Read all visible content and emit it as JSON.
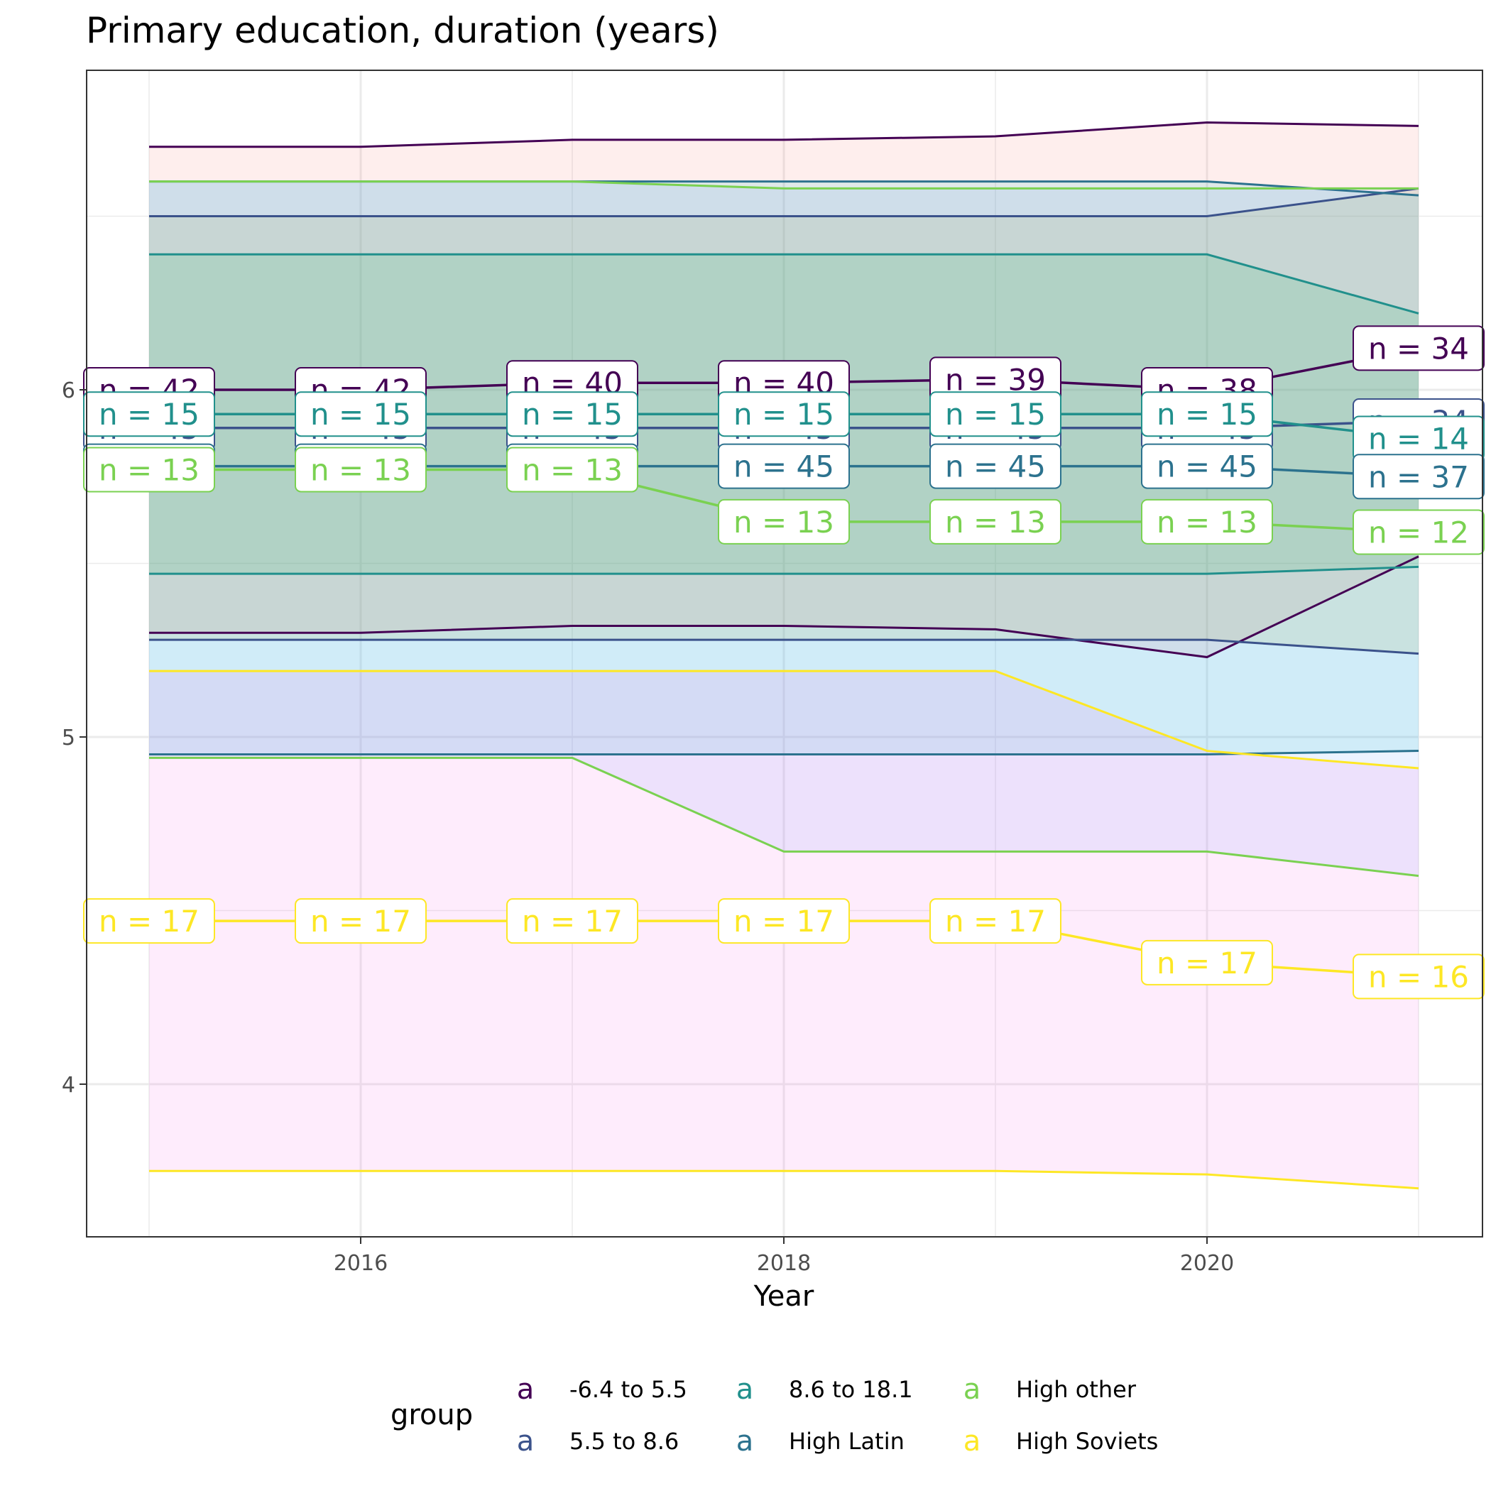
{
  "chart_data": {
    "type": "line",
    "title": "Primary education, duration (years)",
    "xlabel": "Year",
    "ylabel": "",
    "x": [
      2015,
      2016,
      2017,
      2018,
      2019,
      2020,
      2021
    ],
    "x_ticks": [
      2016,
      2018,
      2020
    ],
    "y_ticks": [
      4,
      5,
      6
    ],
    "xlim": [
      2014.7,
      2021.3
    ],
    "ylim": [
      3.58,
      6.94
    ],
    "grid": true,
    "legend": {
      "title": "group",
      "position": "bottom",
      "key_glyph": "a"
    },
    "series": [
      {
        "name": "-6.4 to 5.5",
        "color": "#440154",
        "fill": "#F8766D",
        "mean": [
          6.0,
          6.0,
          6.02,
          6.02,
          6.03,
          6.0,
          6.12
        ],
        "upper": [
          6.7,
          6.7,
          6.72,
          6.72,
          6.73,
          6.77,
          6.76
        ],
        "lower": [
          5.3,
          5.3,
          5.32,
          5.32,
          5.31,
          5.23,
          5.52
        ],
        "n": [
          "n = 42",
          "n = 42",
          "n = 40",
          "n = 40",
          "n = 39",
          "n = 38",
          "n = 34"
        ]
      },
      {
        "name": "5.5 to 8.6",
        "color": "#3B528B",
        "fill": "#B79F00",
        "mean": [
          5.89,
          5.89,
          5.89,
          5.89,
          5.89,
          5.89,
          5.91
        ],
        "upper": [
          6.5,
          6.5,
          6.5,
          6.5,
          6.5,
          6.5,
          6.58
        ],
        "lower": [
          5.28,
          5.28,
          5.28,
          5.28,
          5.28,
          5.28,
          5.24
        ],
        "n": [
          "n = 45",
          "n = 45",
          "n = 45",
          "n = 45",
          "n = 45",
          "n = 45",
          "n = 34"
        ]
      },
      {
        "name": "8.6 to 18.1",
        "color": "#21908C",
        "fill": "#00BA38",
        "mean": [
          5.93,
          5.93,
          5.93,
          5.93,
          5.93,
          5.93,
          5.86
        ],
        "upper": [
          6.39,
          6.39,
          6.39,
          6.39,
          6.39,
          6.39,
          6.22
        ],
        "lower": [
          5.47,
          5.47,
          5.47,
          5.47,
          5.47,
          5.47,
          5.49
        ],
        "n": [
          "n = 15",
          "n = 15",
          "n = 15",
          "n = 15",
          "n = 15",
          "n = 15",
          "n = 14"
        ]
      },
      {
        "name": "High Latin",
        "color": "#2C728E",
        "fill": "#00BFC4",
        "mean": [
          5.78,
          5.78,
          5.78,
          5.78,
          5.78,
          5.78,
          5.75
        ],
        "upper": [
          6.6,
          6.6,
          6.6,
          6.6,
          6.6,
          6.6,
          6.56
        ],
        "lower": [
          4.95,
          4.95,
          4.95,
          4.95,
          4.95,
          4.95,
          4.96
        ],
        "n": [
          "n = 45",
          "n = 45",
          "n = 45",
          "n = 45",
          "n = 45",
          "n = 45",
          "n = 37"
        ]
      },
      {
        "name": "High other",
        "color": "#7AD151",
        "fill": "#619CFF",
        "mean": [
          5.77,
          5.77,
          5.77,
          5.62,
          5.62,
          5.62,
          5.59
        ],
        "upper": [
          6.6,
          6.6,
          6.6,
          6.58,
          6.58,
          6.58,
          6.58
        ],
        "lower": [
          4.94,
          4.94,
          4.94,
          4.67,
          4.67,
          4.67,
          4.6
        ],
        "n": [
          "n = 13",
          "n = 13",
          "n = 13",
          "n = 13",
          "n = 13",
          "n = 13",
          "n = 12"
        ]
      },
      {
        "name": "High Soviets",
        "color": "#FDE725",
        "fill": "#F564E3",
        "mean": [
          4.47,
          4.47,
          4.47,
          4.47,
          4.47,
          4.35,
          4.31
        ],
        "upper": [
          5.19,
          5.19,
          5.19,
          5.19,
          5.19,
          4.96,
          4.91
        ],
        "lower": [
          3.75,
          3.75,
          3.75,
          3.75,
          3.75,
          3.74,
          3.7
        ],
        "n": [
          "n = 17",
          "n = 17",
          "n = 17",
          "n = 17",
          "n = 17",
          "n = 17",
          "n = 16"
        ]
      }
    ]
  }
}
